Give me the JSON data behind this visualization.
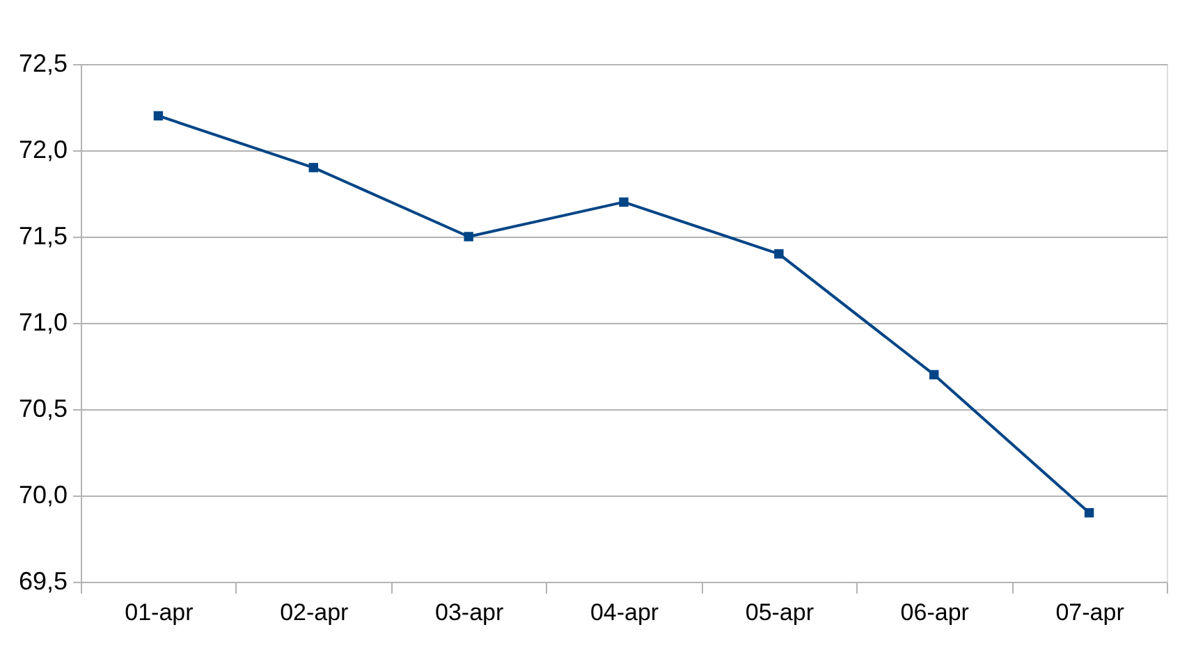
{
  "chart_data": {
    "type": "line",
    "categories": [
      "01-apr",
      "02-apr",
      "03-apr",
      "04-apr",
      "05-apr",
      "06-apr",
      "07-apr"
    ],
    "series": [
      {
        "color": "#004586",
        "values": [
          72.2,
          71.9,
          71.5,
          71.7,
          71.4,
          70.7,
          69.9
        ]
      }
    ],
    "ylim": [
      69.5,
      72.5
    ],
    "yticks": [
      {
        "value": 69.5,
        "label": "69,5"
      },
      {
        "value": 70.0,
        "label": "70,0"
      },
      {
        "value": 70.5,
        "label": "70,5"
      },
      {
        "value": 71.0,
        "label": "71,0"
      },
      {
        "value": 71.5,
        "label": "71,5"
      },
      {
        "value": 72.0,
        "label": "72,0"
      },
      {
        "value": 72.5,
        "label": "72,5"
      }
    ],
    "grid": "y",
    "marker": "square",
    "line_style": "solid"
  }
}
